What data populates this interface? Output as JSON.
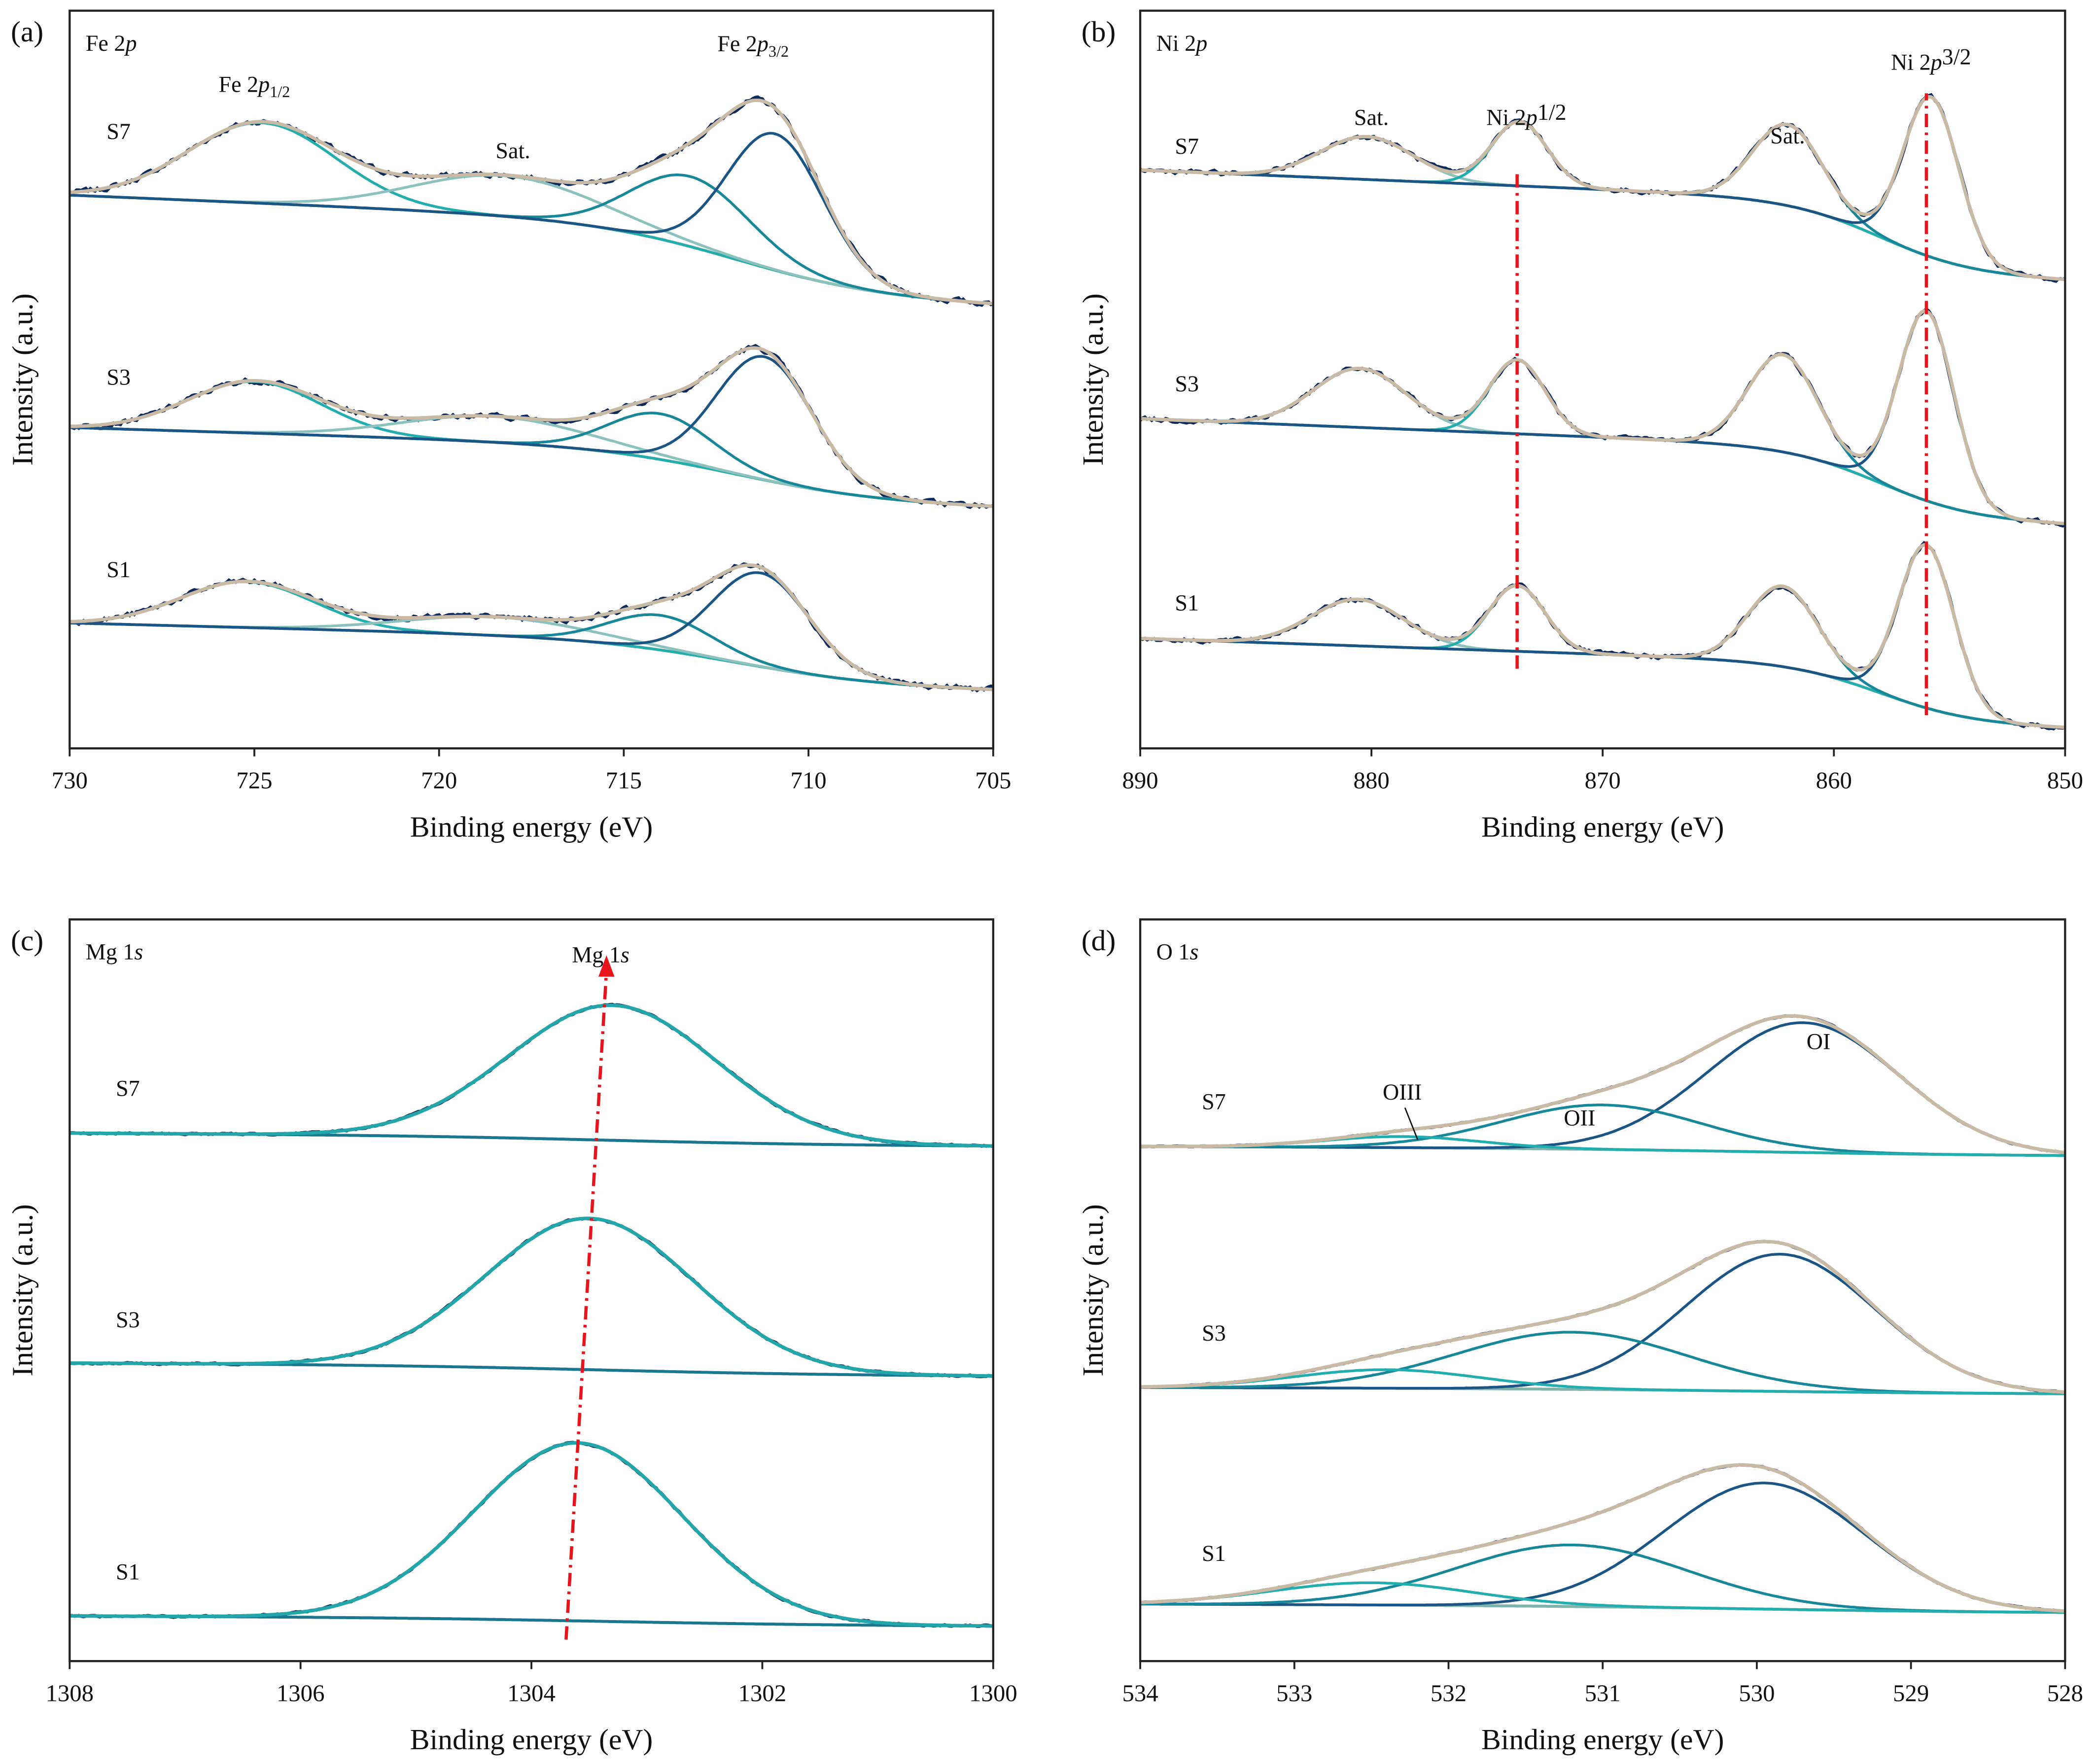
{
  "colors": {
    "raw": "#0d2a5c",
    "envelope": "#c8baa5",
    "background": "#c8baa5",
    "comp_dark": "#1a5586",
    "comp_teal": "#17879a",
    "comp_cyan": "#22aeae",
    "comp_sat": "#8cc2bd",
    "marker": "#e8141c",
    "mg_envelope": "#22a6aa",
    "mg_background": "#1b7690",
    "o_background": "#7fb4ad"
  },
  "chart_data": [
    {
      "panel": "(a)",
      "type": "line",
      "title": {
        "pre": "Fe 2",
        "it": "p",
        "sub": "",
        "post": ""
      },
      "xlabel": "Binding energy (eV)",
      "ylabel": "Intensity (a.u.)",
      "xlim": [
        730,
        705
      ],
      "ylim": [
        0,
        10
      ],
      "xticks": [
        "730",
        "725",
        "720",
        "715",
        "710",
        "705"
      ],
      "yticks_shown": false,
      "grid": false,
      "noise": 0.06,
      "envelope_color": "envelope",
      "background_color": "background",
      "samples": [
        {
          "name": "S7",
          "label_pos": [
            729,
            8.26
          ],
          "background": {
            "left": 7.5,
            "right": 6.0,
            "step_center": 712,
            "step_width": 2
          },
          "components": [
            {
              "center": 724.8,
              "height": 1.09,
              "sigma": 2.0,
              "color": "comp_cyan"
            },
            {
              "center": 718.2,
              "height": 0.55,
              "sigma": 2.5,
              "color": "comp_sat"
            },
            {
              "center": 713.2,
              "height": 0.95,
              "sigma": 1.6,
              "color": "comp_teal"
            },
            {
              "center": 710.9,
              "height": 1.85,
              "sigma": 1.3,
              "color": "comp_dark"
            }
          ]
        },
        {
          "name": "S3",
          "label_pos": [
            729,
            4.93
          ],
          "background": {
            "left": 4.35,
            "right": 3.26,
            "step_center": 712,
            "step_width": 2
          },
          "components": [
            {
              "center": 725.0,
              "height": 0.7,
              "sigma": 1.8,
              "color": "comp_cyan"
            },
            {
              "center": 718.5,
              "height": 0.35,
              "sigma": 2.5,
              "color": "comp_sat"
            },
            {
              "center": 714.0,
              "height": 0.62,
              "sigma": 1.4,
              "color": "comp_teal"
            },
            {
              "center": 711.2,
              "height": 1.67,
              "sigma": 1.3,
              "color": "comp_dark"
            }
          ]
        },
        {
          "name": "S1",
          "label_pos": [
            729,
            2.32
          ],
          "background": {
            "left": 1.7,
            "right": 0.78,
            "step_center": 712,
            "step_width": 2
          },
          "components": [
            {
              "center": 725.2,
              "height": 0.62,
              "sigma": 1.8,
              "color": "comp_cyan"
            },
            {
              "center": 718.5,
              "height": 0.25,
              "sigma": 2.5,
              "color": "comp_sat"
            },
            {
              "center": 714.0,
              "height": 0.47,
              "sigma": 1.4,
              "color": "comp_teal"
            },
            {
              "center": 711.3,
              "height": 1.27,
              "sigma": 1.3,
              "color": "comp_dark"
            }
          ]
        }
      ],
      "annotations": [
        {
          "pre": "Fe 2",
          "it": "p",
          "sub": "1/2",
          "post": "",
          "x": 725,
          "y": 8.9
        },
        {
          "pre": "Sat.",
          "it": "",
          "sub": "",
          "post": "",
          "x": 718,
          "y": 8.0
        },
        {
          "pre": "Fe 2",
          "it": "p",
          "sub": "3/2",
          "post": "",
          "x": 711.5,
          "y": 9.45
        }
      ],
      "markers": []
    },
    {
      "panel": "(b)",
      "type": "line",
      "title": {
        "pre": "Ni 2",
        "it": "p",
        "sub": "",
        "post": ""
      },
      "xlabel": "Binding energy (eV)",
      "ylabel": "Intensity (a.u.)",
      "xlim": [
        890,
        850
      ],
      "ylim": [
        0,
        10
      ],
      "xticks": [
        "890",
        "880",
        "870",
        "860",
        "850"
      ],
      "yticks_shown": false,
      "grid": false,
      "noise": 0.05,
      "envelope_color": "envelope",
      "background_color": "background",
      "samples": [
        {
          "name": "S7",
          "label_pos": [
            888.5,
            8.06
          ],
          "background": {
            "left": 7.84,
            "right": 6.34,
            "step_center": 858,
            "step_width": 2
          },
          "components": [
            {
              "center": 880.2,
              "height": 0.58,
              "sigma": 2.0,
              "color": "comp_sat"
            },
            {
              "center": 873.6,
              "height": 0.87,
              "sigma": 1.2,
              "color": "comp_cyan"
            },
            {
              "center": 862.0,
              "height": 1.1,
              "sigma": 1.5,
              "color": "comp_teal"
            },
            {
              "center": 855.8,
              "height": 2.17,
              "sigma": 1.2,
              "color": "comp_dark"
            }
          ]
        },
        {
          "name": "S3",
          "label_pos": [
            888.5,
            4.84
          ],
          "background": {
            "left": 4.47,
            "right": 3.03,
            "step_center": 858,
            "step_width": 2
          },
          "components": [
            {
              "center": 880.5,
              "height": 0.8,
              "sigma": 2.0,
              "color": "comp_sat"
            },
            {
              "center": 873.7,
              "height": 1.0,
              "sigma": 1.2,
              "color": "comp_cyan"
            },
            {
              "center": 862.2,
              "height": 1.32,
              "sigma": 1.5,
              "color": "comp_teal"
            },
            {
              "center": 856.0,
              "height": 2.57,
              "sigma": 1.2,
              "color": "comp_dark"
            }
          ]
        },
        {
          "name": "S1",
          "label_pos": [
            888.5,
            1.87
          ],
          "background": {
            "left": 1.49,
            "right": 0.27,
            "step_center": 858,
            "step_width": 2
          },
          "components": [
            {
              "center": 880.6,
              "height": 0.63,
              "sigma": 2.0,
              "color": "comp_sat"
            },
            {
              "center": 873.7,
              "height": 0.89,
              "sigma": 1.2,
              "color": "comp_cyan"
            },
            {
              "center": 862.2,
              "height": 1.09,
              "sigma": 1.5,
              "color": "comp_teal"
            },
            {
              "center": 856.0,
              "height": 2.21,
              "sigma": 1.2,
              "color": "comp_dark"
            }
          ]
        }
      ],
      "annotations": [
        {
          "pre": "Sat.",
          "it": "",
          "sub": "",
          "post": "",
          "x": 880,
          "y": 8.45
        },
        {
          "pre": "Ni 2",
          "it": "p",
          "sub": "",
          "post": "1/2",
          "x": 873.3,
          "y": 8.45
        },
        {
          "pre": "Sat.",
          "it": "",
          "sub": "",
          "post": "",
          "x": 862,
          "y": 8.2
        },
        {
          "pre": "Ni 2",
          "it": "p",
          "sub": "",
          "post": "3/2",
          "x": 855.8,
          "y": 9.2
        }
      ],
      "markers": [
        {
          "type": "vline",
          "x": 873.7,
          "y": [
            1.08,
            7.83
          ]
        },
        {
          "type": "vline",
          "x": 856.0,
          "y": [
            0.45,
            8.88
          ]
        }
      ]
    },
    {
      "panel": "(c)",
      "type": "line",
      "title": {
        "pre": "Mg 1",
        "it": "s",
        "sub": "",
        "post": ""
      },
      "xlabel": "Binding energy (eV)",
      "ylabel": "Intensity (a.u.)",
      "xlim": [
        1308,
        1300
      ],
      "ylim": [
        0,
        10
      ],
      "xticks": [
        "1308",
        "1306",
        "1304",
        "1302",
        "1300"
      ],
      "yticks_shown": false,
      "grid": false,
      "noise": 0.02,
      "envelope_color": "mg_envelope",
      "background_color": "mg_background",
      "samples": [
        {
          "name": "S7",
          "label_pos": [
            1307.6,
            7.62
          ],
          "background": {
            "left": 7.12,
            "right": 6.94,
            "step_center": 1303.4,
            "step_width": 1
          },
          "components": [
            {
              "center": 1303.3,
              "height": 1.82,
              "sigma": 0.9,
              "color": "mg_envelope"
            }
          ]
        },
        {
          "name": "S3",
          "label_pos": [
            1307.6,
            4.5
          ],
          "background": {
            "left": 4.02,
            "right": 3.84,
            "step_center": 1303.4,
            "step_width": 1
          },
          "components": [
            {
              "center": 1303.5,
              "height": 2.04,
              "sigma": 0.9,
              "color": "mg_envelope"
            }
          ]
        },
        {
          "name": "S1",
          "label_pos": [
            1307.6,
            1.1
          ],
          "background": {
            "left": 0.61,
            "right": 0.47,
            "step_center": 1303.4,
            "step_width": 1
          },
          "components": [
            {
              "center": 1303.6,
              "height": 2.4,
              "sigma": 0.9,
              "color": "mg_envelope"
            }
          ]
        }
      ],
      "annotations": [
        {
          "pre": "Mg 1",
          "it": "s",
          "sub": "",
          "post": "",
          "x": 1303.4,
          "y": 9.42
        }
      ],
      "markers": [
        {
          "type": "arrow",
          "from": [
            1303.7,
            0.29
          ],
          "to": [
            1303.35,
            9.3
          ]
        }
      ]
    },
    {
      "panel": "(d)",
      "type": "line",
      "title": {
        "pre": "O 1",
        "it": "s",
        "sub": "",
        "post": ""
      },
      "xlabel": "Binding energy (eV)",
      "ylabel": "Intensity (a.u.)",
      "xlim": [
        534,
        528
      ],
      "ylim": [
        0,
        10
      ],
      "xticks": [
        "534",
        "533",
        "532",
        "531",
        "530",
        "529",
        "528"
      ],
      "yticks_shown": false,
      "grid": false,
      "noise": 0.01,
      "envelope_color": "envelope",
      "background_color": "o_background",
      "samples": [
        {
          "name": "S7",
          "label_pos": [
            533.6,
            7.44
          ],
          "background": {
            "left": 6.94,
            "right": 6.81,
            "step_center": 530,
            "step_width": 0.8
          },
          "components": [
            {
              "center": 529.7,
              "height": 1.75,
              "sigma": 0.62,
              "color": "comp_dark"
            },
            {
              "center": 531.0,
              "height": 0.6,
              "sigma": 0.65,
              "color": "comp_teal"
            },
            {
              "center": 532.3,
              "height": 0.15,
              "sigma": 0.5,
              "color": "comp_cyan"
            }
          ]
        },
        {
          "name": "S3",
          "label_pos": [
            533.6,
            4.32
          ],
          "background": {
            "left": 3.69,
            "right": 3.6,
            "step_center": 530,
            "step_width": 0.8
          },
          "components": [
            {
              "center": 529.85,
              "height": 1.85,
              "sigma": 0.62,
              "color": "comp_dark"
            },
            {
              "center": 531.2,
              "height": 0.77,
              "sigma": 0.75,
              "color": "comp_teal"
            },
            {
              "center": 532.4,
              "height": 0.25,
              "sigma": 0.6,
              "color": "comp_cyan"
            }
          ]
        },
        {
          "name": "S1",
          "label_pos": [
            533.6,
            1.35
          ],
          "background": {
            "left": 0.77,
            "right": 0.65,
            "step_center": 530,
            "step_width": 0.8
          },
          "components": [
            {
              "center": 529.95,
              "height": 1.7,
              "sigma": 0.65,
              "color": "comp_dark"
            },
            {
              "center": 531.2,
              "height": 0.83,
              "sigma": 0.75,
              "color": "comp_teal"
            },
            {
              "center": 532.5,
              "height": 0.3,
              "sigma": 0.65,
              "color": "comp_cyan"
            }
          ]
        }
      ],
      "annotations": [
        {
          "pre": "OI",
          "it": "",
          "sub": "",
          "post": "",
          "x": 529.6,
          "y": 8.25
        },
        {
          "pre": "OII",
          "it": "",
          "sub": "",
          "post": "",
          "x": 531.15,
          "y": 7.22
        },
        {
          "pre": "OIII",
          "it": "",
          "sub": "",
          "post": "",
          "x": 532.3,
          "y": 7.57,
          "leader_to": [
            532.2,
            7.03
          ]
        }
      ],
      "markers": []
    }
  ]
}
